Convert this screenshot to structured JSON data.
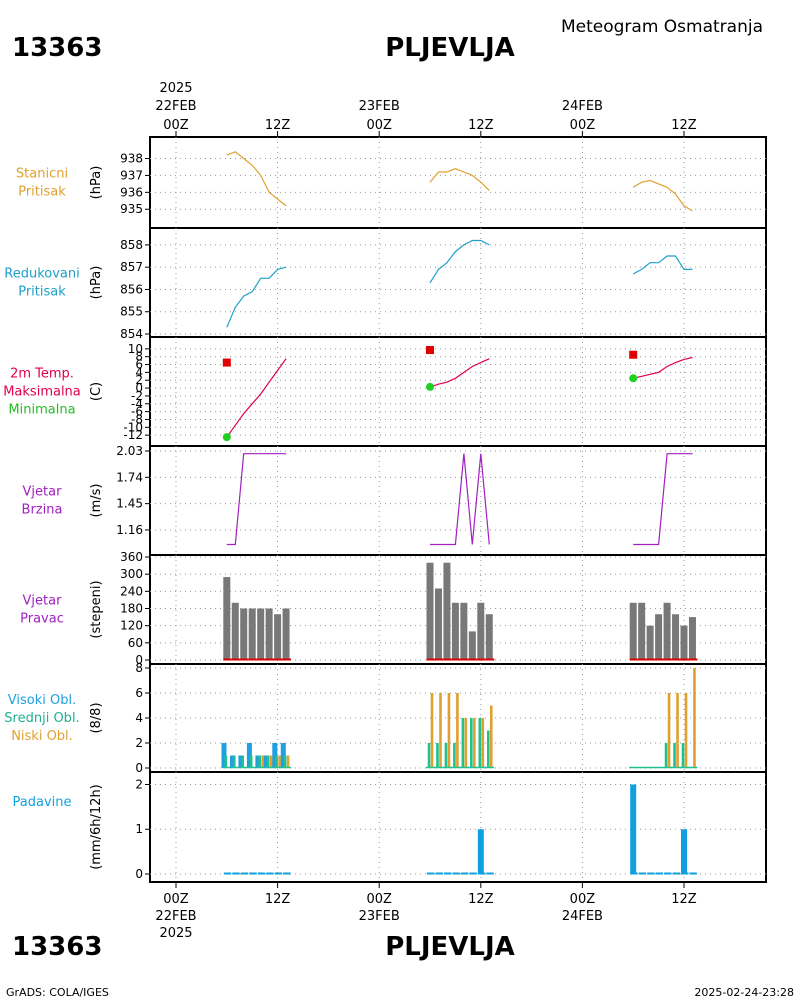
{
  "header": {
    "station_id": "13363",
    "station_name": "PLJEVLJA",
    "product_title": "Meteogram Osmatranja"
  },
  "footer": {
    "station_id": "13363",
    "station_name": "PLJEVLJA",
    "credit": "GrADS: COLA/IGES",
    "timestamp": "2025-02-24-23:28"
  },
  "time_axis": {
    "year_label": "2025",
    "hours": [
      0,
      12,
      24,
      36,
      48,
      60
    ],
    "tick_labels": [
      "00Z",
      "12Z",
      "00Z",
      "12Z",
      "00Z",
      "12Z"
    ],
    "date_labels": [
      {
        "hour": 0,
        "text": "22FEB"
      },
      {
        "hour": 24,
        "text": "23FEB"
      },
      {
        "hour": 48,
        "text": "24FEB"
      }
    ]
  },
  "colors": {
    "station_pressure": "#e0a030",
    "reduced_pressure": "#1ea0c8",
    "temperature": "#e0004a",
    "tmax_marker": "#e00000",
    "tmin_marker": "#20d020",
    "wind": "#a020c0",
    "wind_dir_bar": "#787878",
    "wind_dir_base": "#e00000",
    "cloud_high": "#20a0e0",
    "cloud_mid": "#20c090",
    "cloud_low": "#e0a030",
    "precip": "#10a0e0"
  },
  "chart_data": [
    {
      "id": "stanicni-pritisak",
      "type": "line",
      "label_lines": [
        "Stanicni",
        "Pritisak"
      ],
      "label_colors": [
        "#e0a030",
        "#e0a030"
      ],
      "ylabel": "(hPa)",
      "ylim": [
        934.6,
        938.8
      ],
      "yticks": [
        935,
        936,
        937,
        938
      ],
      "ytick_labels": [
        "935",
        "936",
        "937",
        "938"
      ],
      "series": [
        {
          "color_key": "station_pressure",
          "segments": [
            [
              [
                6,
                938.2
              ],
              [
                7,
                938.4
              ],
              [
                8,
                938.0
              ],
              [
                9,
                937.6
              ],
              [
                10,
                937.0
              ],
              [
                11,
                936.0
              ],
              [
                12,
                935.6
              ],
              [
                13,
                935.2
              ]
            ],
            [
              [
                30,
                936.6
              ],
              [
                31,
                937.2
              ],
              [
                32,
                937.2
              ],
              [
                33,
                937.4
              ],
              [
                34,
                937.2
              ],
              [
                35,
                937.0
              ],
              [
                36,
                936.6
              ],
              [
                37,
                936.1
              ]
            ],
            [
              [
                54,
                936.3
              ],
              [
                55,
                936.6
              ],
              [
                56,
                936.7
              ],
              [
                57,
                936.5
              ],
              [
                58,
                936.3
              ],
              [
                59,
                935.9
              ],
              [
                60,
                935.2
              ],
              [
                61,
                934.9
              ]
            ]
          ]
        }
      ]
    },
    {
      "id": "redukovani-pritisak",
      "type": "line",
      "label_lines": [
        "Redukovani",
        "Pritisak"
      ],
      "label_colors": [
        "#1ea0c8",
        "#1ea0c8"
      ],
      "ylabel": "(hPa)",
      "ylim": [
        854,
        858.4
      ],
      "yticks": [
        854,
        855,
        856,
        857,
        858
      ],
      "ytick_labels": [
        "854",
        "855",
        "856",
        "857",
        "858"
      ],
      "series": [
        {
          "color_key": "reduced_pressure",
          "segments": [
            [
              [
                6,
                854.3
              ],
              [
                7,
                855.2
              ],
              [
                8,
                855.7
              ],
              [
                9,
                855.9
              ],
              [
                10,
                856.5
              ],
              [
                11,
                856.5
              ],
              [
                12,
                856.9
              ],
              [
                13,
                857.0
              ]
            ],
            [
              [
                30,
                856.3
              ],
              [
                31,
                856.9
              ],
              [
                32,
                857.2
              ],
              [
                33,
                857.7
              ],
              [
                34,
                858.0
              ],
              [
                35,
                858.2
              ],
              [
                36,
                858.2
              ],
              [
                37,
                858.0
              ]
            ],
            [
              [
                54,
                856.7
              ],
              [
                55,
                856.9
              ],
              [
                56,
                857.2
              ],
              [
                57,
                857.2
              ],
              [
                58,
                857.5
              ],
              [
                59,
                857.5
              ],
              [
                60,
                856.9
              ],
              [
                61,
                856.9
              ]
            ]
          ]
        }
      ]
    },
    {
      "id": "temperatura-2m",
      "type": "line",
      "label_lines": [
        "2m Temp.",
        "Maksimalna",
        "Minimalna"
      ],
      "label_colors": [
        "#e0004a",
        "#e0004a",
        "#20c020"
      ],
      "ylabel": "(C)",
      "ylim": [
        -14,
        12
      ],
      "yticks": [
        -12,
        -10,
        -8,
        -6,
        -4,
        -2,
        0,
        2,
        4,
        6,
        8,
        10
      ],
      "ytick_labels": [
        "-12",
        "-10",
        "-8",
        "-6",
        "-4",
        "-2",
        "0",
        "2",
        "4",
        "6",
        "8",
        "10"
      ],
      "series": [
        {
          "color_key": "temperature",
          "segments": [
            [
              [
                6,
                -12.5
              ],
              [
                7,
                -9.5
              ],
              [
                8,
                -6.5
              ],
              [
                9,
                -4
              ],
              [
                10,
                -1.5
              ],
              [
                11,
                1.5
              ],
              [
                12,
                4.5
              ],
              [
                13,
                7.5
              ]
            ],
            [
              [
                30,
                0.3
              ],
              [
                31,
                1
              ],
              [
                32,
                1.5
              ],
              [
                33,
                2.5
              ],
              [
                34,
                4
              ],
              [
                35,
                5.5
              ],
              [
                36,
                6.5
              ],
              [
                37,
                7.5
              ]
            ],
            [
              [
                54,
                2.5
              ],
              [
                55,
                3
              ],
              [
                56,
                3.5
              ],
              [
                57,
                4
              ],
              [
                58,
                5.5
              ],
              [
                59,
                6.5
              ],
              [
                60,
                7.3
              ],
              [
                61,
                7.8
              ]
            ]
          ]
        }
      ],
      "markers": [
        {
          "hour": 6,
          "value": 6.5,
          "kind": "max"
        },
        {
          "hour": 30,
          "value": 9.7,
          "kind": "max"
        },
        {
          "hour": 54,
          "value": 8.5,
          "kind": "max"
        },
        {
          "hour": 6,
          "value": -12.5,
          "kind": "min"
        },
        {
          "hour": 30,
          "value": 0.3,
          "kind": "min"
        },
        {
          "hour": 54,
          "value": 2.5,
          "kind": "min"
        }
      ]
    },
    {
      "id": "vjetar-brzina",
      "type": "line",
      "label_lines": [
        "Vjetar",
        "Brzina"
      ],
      "label_colors": [
        "#a020c0",
        "#a020c0"
      ],
      "ylabel": "(m/s)",
      "ylim": [
        0.95,
        2.03
      ],
      "yticks": [
        1.16,
        1.45,
        1.74,
        2.03
      ],
      "ytick_labels": [
        "1.16",
        "1.45",
        "1.74",
        "2.03"
      ],
      "series": [
        {
          "color_key": "wind",
          "segments": [
            [
              [
                6,
                1.0
              ],
              [
                7,
                1.0
              ],
              [
                8,
                2.0
              ],
              [
                9,
                2.0
              ],
              [
                10,
                2.0
              ],
              [
                11,
                2.0
              ],
              [
                12,
                2.0
              ],
              [
                13,
                2.0
              ]
            ],
            [
              [
                30,
                1.0
              ],
              [
                31,
                1.0
              ],
              [
                32,
                1.0
              ],
              [
                33,
                1.0
              ],
              [
                34,
                2.0
              ],
              [
                35,
                1.0
              ],
              [
                36,
                2.0
              ],
              [
                37,
                1.0
              ]
            ],
            [
              [
                54,
                1.0
              ],
              [
                55,
                1.0
              ],
              [
                56,
                1.0
              ],
              [
                57,
                1.0
              ],
              [
                58,
                2.0
              ],
              [
                59,
                2.0
              ],
              [
                60,
                2.0
              ],
              [
                61,
                2.0
              ]
            ]
          ]
        }
      ]
    },
    {
      "id": "vjetar-pravac",
      "type": "bar",
      "label_lines": [
        "Vjetar",
        "Pravac"
      ],
      "label_colors": [
        "#a020c0",
        "#a020c0"
      ],
      "ylabel": "(stepeni)",
      "ylim": [
        0,
        360
      ],
      "yticks": [
        0,
        60,
        120,
        180,
        240,
        300,
        360
      ],
      "ytick_labels": [
        "0",
        "60",
        "120",
        "180",
        "240",
        "300",
        "360"
      ],
      "hours": [
        6,
        7,
        8,
        9,
        10,
        11,
        12,
        13,
        30,
        31,
        32,
        33,
        34,
        35,
        36,
        37,
        54,
        55,
        56,
        57,
        58,
        59,
        60,
        61
      ],
      "values": [
        290,
        200,
        180,
        180,
        180,
        180,
        160,
        180,
        340,
        250,
        340,
        200,
        200,
        100,
        200,
        160,
        200,
        200,
        120,
        160,
        200,
        160,
        120,
        150
      ]
    },
    {
      "id": "oblacnost",
      "type": "bar",
      "label_lines": [
        "Visoki Obl.",
        "Srednji Obl.",
        "Niski Obl."
      ],
      "label_colors": [
        "#20a0e0",
        "#20b090",
        "#e0a030"
      ],
      "ylabel": "(8/8)",
      "ylim": [
        0,
        8
      ],
      "yticks": [
        0,
        2,
        4,
        6,
        8
      ],
      "ytick_labels": [
        "0",
        "2",
        "4",
        "6",
        "8"
      ],
      "hours": [
        6,
        7,
        8,
        9,
        10,
        11,
        12,
        13,
        30,
        31,
        32,
        33,
        34,
        35,
        36,
        37,
        54,
        55,
        56,
        57,
        58,
        59,
        60,
        61
      ],
      "series": [
        {
          "name": "Visoki Obl.",
          "color_key": "cloud_high",
          "values": [
            2,
            1,
            1,
            2,
            1,
            1,
            2,
            2,
            0,
            0,
            0,
            0,
            0,
            0,
            0,
            0,
            0,
            0,
            0,
            0,
            0,
            0,
            0,
            0
          ]
        },
        {
          "name": "Srednji Obl.",
          "color_key": "cloud_mid",
          "values": [
            1,
            1,
            1,
            1,
            1,
            1,
            1,
            1,
            2,
            2,
            2,
            2,
            4,
            4,
            4,
            3,
            0,
            0,
            0,
            0,
            2,
            2,
            2,
            0
          ]
        },
        {
          "name": "Niski Obl.",
          "color_key": "cloud_low",
          "values": [
            0,
            0,
            0,
            0,
            1,
            1,
            1,
            1,
            6,
            6,
            6,
            6,
            4,
            4,
            4,
            5,
            0,
            0,
            0,
            0,
            6,
            6,
            6,
            8
          ]
        }
      ]
    },
    {
      "id": "padavine",
      "type": "bar",
      "label_lines": [
        "Padavine"
      ],
      "label_colors": [
        "#10a0e0"
      ],
      "ylabel": "(mm/6h/12h)",
      "ylim": [
        0,
        2.1
      ],
      "yticks": [
        0,
        1,
        2
      ],
      "ytick_labels": [
        "0",
        "1",
        "2"
      ],
      "hours": [
        6,
        7,
        8,
        9,
        10,
        11,
        12,
        13,
        30,
        31,
        32,
        33,
        34,
        35,
        36,
        37,
        54,
        55,
        56,
        57,
        58,
        59,
        60,
        61
      ],
      "values": [
        0,
        0,
        0,
        0,
        0,
        0,
        0,
        0,
        0,
        0,
        0,
        0,
        0,
        0,
        1.0,
        0,
        2.0,
        0,
        0,
        0,
        0,
        0,
        1.0,
        0
      ]
    }
  ]
}
